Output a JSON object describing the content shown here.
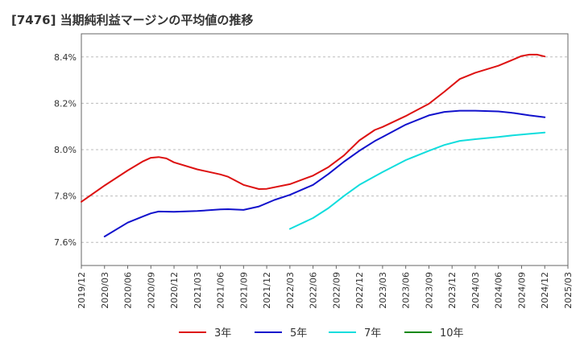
{
  "chart_data": {
    "type": "line",
    "title": "[7476]  当期純利益マージンの平均値の推移",
    "xlabel": "",
    "ylabel": "",
    "x_range": [
      "2019-12",
      "2025-03"
    ],
    "ylim": [
      7.5,
      8.5
    ],
    "x_ticks": [
      "2019/12",
      "2020/03",
      "2020/06",
      "2020/09",
      "2020/12",
      "2021/03",
      "2021/06",
      "2021/09",
      "2021/12",
      "2022/03",
      "2022/06",
      "2022/09",
      "2022/12",
      "2023/03",
      "2023/06",
      "2023/09",
      "2023/12",
      "2024/03",
      "2024/06",
      "2024/09",
      "2024/12",
      "2025/03"
    ],
    "y_ticks": [
      {
        "value": 7.6,
        "label": "7.6%"
      },
      {
        "value": 7.8,
        "label": "7.8%"
      },
      {
        "value": 8.0,
        "label": "8.0%"
      },
      {
        "value": 8.2,
        "label": "8.2%"
      },
      {
        "value": 8.4,
        "label": "8.4%"
      }
    ],
    "grid": "horizontal dashed",
    "legend_position": "bottom",
    "series": [
      {
        "name": "3年",
        "color": "#dd1111",
        "x": [
          "2019-12",
          "2020-03",
          "2020-06",
          "2020-08",
          "2020-09",
          "2020-10",
          "2020-11",
          "2020-12",
          "2021-03",
          "2021-06",
          "2021-07",
          "2021-09",
          "2021-11",
          "2021-12",
          "2022-03",
          "2022-06",
          "2022-08",
          "2022-10",
          "2022-12",
          "2023-02",
          "2023-03",
          "2023-06",
          "2023-09",
          "2023-11",
          "2024-01",
          "2024-03",
          "2024-06",
          "2024-08",
          "2024-09",
          "2024-10",
          "2024-11",
          "2024-12"
        ],
        "values": [
          7.775,
          7.845,
          7.91,
          7.95,
          7.965,
          7.968,
          7.962,
          7.945,
          7.915,
          7.893,
          7.883,
          7.848,
          7.83,
          7.831,
          7.851,
          7.888,
          7.925,
          7.975,
          8.04,
          8.085,
          8.098,
          8.145,
          8.198,
          8.25,
          8.305,
          8.332,
          8.362,
          8.39,
          8.404,
          8.41,
          8.41,
          8.402
        ]
      },
      {
        "name": "5年",
        "color": "#1111cc",
        "x": [
          "2020-03",
          "2020-06",
          "2020-08",
          "2020-09",
          "2020-10",
          "2020-12",
          "2021-03",
          "2021-06",
          "2021-07",
          "2021-09",
          "2021-11",
          "2022-01",
          "2022-03",
          "2022-06",
          "2022-08",
          "2022-10",
          "2022-12",
          "2023-02",
          "2023-03",
          "2023-06",
          "2023-09",
          "2023-11",
          "2024-01",
          "2024-03",
          "2024-06",
          "2024-08",
          "2024-10",
          "2024-12"
        ],
        "values": [
          7.625,
          7.685,
          7.712,
          7.725,
          7.733,
          7.732,
          7.735,
          7.742,
          7.743,
          7.74,
          7.755,
          7.783,
          7.805,
          7.848,
          7.895,
          7.948,
          7.995,
          8.037,
          8.055,
          8.108,
          8.148,
          8.163,
          8.168,
          8.168,
          8.165,
          8.158,
          8.148,
          8.14
        ]
      },
      {
        "name": "7年",
        "color": "#11dddd",
        "x": [
          "2022-03",
          "2022-06",
          "2022-08",
          "2022-10",
          "2022-12",
          "2023-02",
          "2023-03",
          "2023-06",
          "2023-09",
          "2023-11",
          "2024-01",
          "2024-03",
          "2024-06",
          "2024-08",
          "2024-10",
          "2024-12"
        ],
        "values": [
          7.658,
          7.705,
          7.748,
          7.8,
          7.848,
          7.885,
          7.903,
          7.955,
          7.995,
          8.02,
          8.038,
          8.045,
          8.055,
          8.062,
          8.068,
          8.074
        ]
      },
      {
        "name": "10年",
        "color": "#118811",
        "x": [],
        "values": []
      }
    ]
  }
}
